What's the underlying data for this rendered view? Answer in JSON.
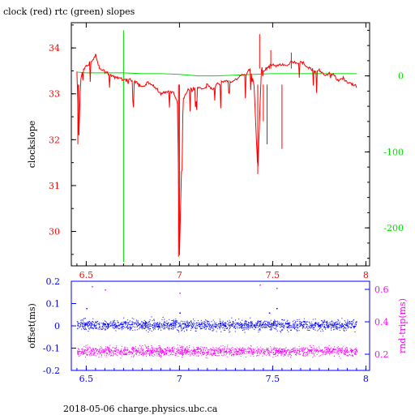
{
  "header": {
    "title": "clock (red) rtc (green) slopes"
  },
  "footer": {
    "caption": "2018-05-06 charge.physics.ubc.ca"
  },
  "colors": {
    "axis_black": "#000000",
    "clock": "#ff0000",
    "rtc": "#00dd00",
    "offset": "#0000ff",
    "rndtrip": "#ff00ff"
  },
  "chart_data": [
    {
      "type": "line",
      "title": "clock (red) rtc (green) slopes",
      "ylabel": "clockslope",
      "y2label": "",
      "xlim": [
        6.42,
        8.02
      ],
      "ylim": [
        29.25,
        34.55
      ],
      "y2lim": [
        -250,
        70
      ],
      "x_ticks": [
        6.5,
        7,
        7.5,
        8
      ],
      "x_tick_labels": [
        "6.5",
        "7",
        "7.5",
        "8"
      ],
      "y_ticks": [
        30,
        31,
        32,
        33,
        34
      ],
      "y_tick_labels": [
        "30",
        "31",
        "32",
        "33",
        "34"
      ],
      "y2_ticks": [
        -200,
        -100,
        0
      ],
      "y2_tick_labels": [
        "-200",
        "-100",
        "0"
      ],
      "series": [
        {
          "name": "clock",
          "axis": "left",
          "x": [
            6.45,
            6.46,
            6.47,
            6.48,
            6.5,
            6.53,
            6.55,
            6.57,
            6.6,
            6.63,
            6.65,
            6.68,
            6.7,
            6.72,
            6.75,
            6.78,
            6.8,
            6.83,
            6.85,
            6.88,
            6.9,
            6.93,
            6.95,
            6.97,
            6.99,
            7.0,
            7.02,
            7.05,
            7.08,
            7.1,
            7.13,
            7.15,
            7.18,
            7.2,
            7.23,
            7.25,
            7.28,
            7.3,
            7.33,
            7.35,
            7.38,
            7.4,
            7.42,
            7.44,
            7.45,
            7.48,
            7.5,
            7.53,
            7.55,
            7.58,
            7.6,
            7.63,
            7.65,
            7.68,
            7.7,
            7.73,
            7.75,
            7.78,
            7.8,
            7.83,
            7.85,
            7.88,
            7.9,
            7.93,
            7.95
          ],
          "y": [
            33.5,
            32.0,
            33.3,
            33.5,
            33.6,
            33.7,
            33.85,
            33.55,
            33.5,
            33.4,
            33.35,
            33.35,
            33.3,
            33.3,
            33.3,
            33.2,
            33.15,
            33.25,
            33.2,
            33.1,
            33.0,
            33.05,
            33.05,
            33.0,
            32.8,
            29.5,
            32.9,
            33.1,
            33.1,
            33.15,
            33.1,
            33.2,
            33.1,
            33.2,
            33.25,
            33.3,
            33.25,
            33.3,
            33.4,
            33.4,
            33.55,
            33.2,
            31.3,
            33.6,
            33.5,
            33.6,
            33.65,
            33.6,
            33.65,
            33.6,
            33.7,
            33.65,
            33.7,
            33.6,
            33.55,
            33.5,
            33.5,
            33.4,
            33.45,
            33.4,
            33.3,
            33.35,
            33.25,
            33.2,
            33.15
          ]
        },
        {
          "name": "rtc",
          "axis": "right",
          "x": [
            6.45,
            6.5,
            6.6,
            6.7,
            6.8,
            6.9,
            7.0,
            7.1,
            7.2,
            7.3,
            7.4,
            7.5,
            7.6,
            7.7,
            7.8,
            7.9,
            7.95
          ],
          "y": [
            5,
            4,
            4,
            4,
            3,
            3,
            2,
            0,
            0,
            1,
            2,
            3,
            3,
            3,
            3,
            3,
            3
          ]
        }
      ]
    },
    {
      "type": "scatter",
      "title": "",
      "ylabel": "offset(ms)",
      "y2label": "rnd-trip(ms)",
      "xlim": [
        6.42,
        8.02
      ],
      "ylim": [
        -0.2,
        0.2
      ],
      "y2lim": [
        0.1,
        0.65
      ],
      "x_ticks": [
        6.5,
        7,
        7.5,
        8
      ],
      "x_tick_labels": [
        "6.5",
        "7",
        "7.5",
        "8"
      ],
      "y_ticks": [
        -0.2,
        -0.1,
        0,
        0.1,
        0.2
      ],
      "y_tick_labels": [
        "-0.2",
        "-0.1",
        "0",
        "0.1",
        "0.2"
      ],
      "y2_ticks": [
        0.2,
        0.4,
        0.6
      ],
      "y2_tick_labels": [
        "0.2",
        "0.4",
        "0.6"
      ],
      "series": [
        {
          "name": "offset",
          "axis": "left",
          "x_range": [
            6.45,
            7.95
          ],
          "center": 0.005,
          "spread": 0.04,
          "outliers": [
            [
              6.5,
              0.08
            ],
            [
              7.0,
              0.06
            ],
            [
              7.52,
              0.08
            ],
            [
              7.48,
              0.06
            ]
          ]
        },
        {
          "name": "rnd-trip",
          "axis": "right",
          "x_range": [
            6.45,
            7.95
          ],
          "center": 0.22,
          "spread": 0.05,
          "outliers": [
            [
              6.53,
              0.62
            ],
            [
              6.6,
              0.6
            ],
            [
              7.0,
              0.58
            ],
            [
              7.43,
              0.63
            ],
            [
              7.52,
              0.61
            ]
          ]
        }
      ]
    }
  ]
}
